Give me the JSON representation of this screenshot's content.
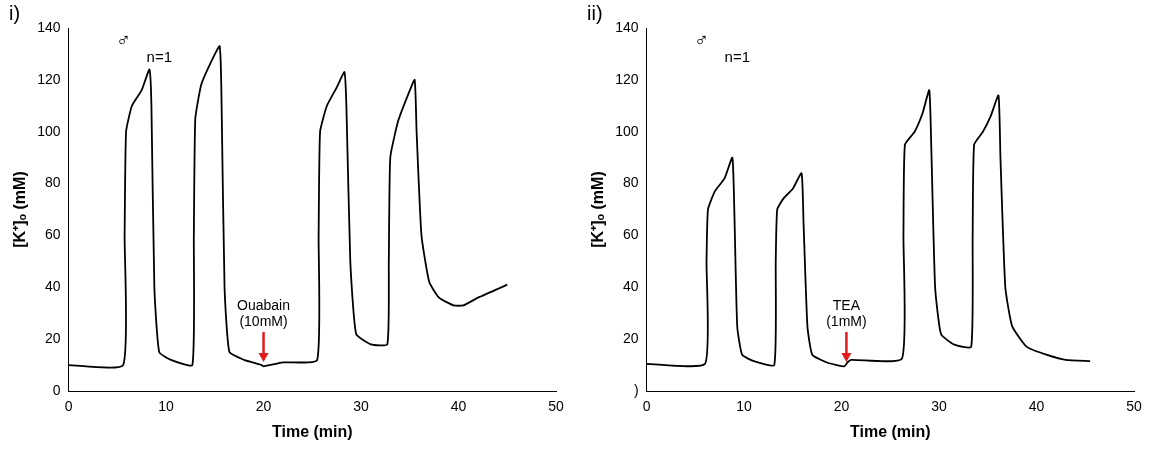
{
  "chart_data": [
    {
      "type": "line",
      "panel_label": "i)",
      "sex": "♂",
      "n_label": "n=1",
      "x_label": "Time (min)",
      "y_label": "[K⁺]ₒ (mM)",
      "xlim": [
        0,
        50
      ],
      "xticks": [
        0,
        10,
        20,
        30,
        40,
        50
      ],
      "ylim": [
        0,
        140
      ],
      "yticks": [
        0,
        20,
        40,
        60,
        80,
        100,
        120,
        140
      ],
      "grid": false,
      "color": "#000000",
      "x": [
        0,
        5.6,
        5.75,
        5.9,
        6.5,
        7.5,
        8.3,
        8.5,
        8.8,
        9.3,
        10.5,
        12.7,
        12.85,
        13.0,
        13.6,
        14.5,
        15.5,
        15.7,
        16.0,
        16.5,
        18,
        19.8,
        20.0,
        22,
        25.5,
        25.65,
        25.8,
        26.5,
        27.5,
        28.3,
        28.5,
        28.9,
        29.5,
        31,
        32.7,
        32.85,
        33.0,
        33.8,
        34.8,
        35.5,
        35.7,
        36.2,
        37,
        38,
        39.5,
        40.5,
        42,
        45
      ],
      "values": [
        10,
        10,
        60,
        100,
        110,
        116,
        124,
        110,
        40,
        15,
        12,
        10,
        60,
        105,
        118,
        126,
        133,
        110,
        40,
        15,
        12,
        10,
        9.5,
        11,
        12,
        60,
        100,
        110,
        117,
        123,
        110,
        50,
        22,
        18,
        18,
        50,
        90,
        104,
        114,
        120,
        100,
        60,
        42,
        36,
        33,
        33,
        36,
        41
      ],
      "annotations": [
        {
          "text": [
            "Ouabain",
            "(10mM)"
          ],
          "x": 20,
          "y": 10,
          "color": "#e31a1c"
        }
      ]
    },
    {
      "type": "line",
      "panel_label": "ii)",
      "sex": "♂",
      "n_label": "n=1",
      "x_label": "Time (min)",
      "y_label": "[K⁺]ₒ (mM)",
      "xlim": [
        0,
        50
      ],
      "xticks": [
        0,
        10,
        20,
        30,
        40,
        50
      ],
      "ylim": [
        0,
        140
      ],
      "yticks": [
        {
          "value": 0,
          "label": ")"
        },
        20,
        40,
        60,
        80,
        100,
        120,
        140
      ],
      "grid": false,
      "color": "#000000",
      "x": [
        0,
        6.0,
        6.15,
        6.3,
        7,
        8,
        8.8,
        9.0,
        9.3,
        9.8,
        11,
        13.1,
        13.25,
        13.4,
        14,
        15,
        15.9,
        16.1,
        16.5,
        17,
        18.5,
        20.3,
        20.6,
        21,
        26.2,
        26.35,
        26.5,
        27.5,
        28.3,
        29,
        29.2,
        29.6,
        30.2,
        31.5,
        33.3,
        33.45,
        33.6,
        34.5,
        35.3,
        36.1,
        36.3,
        36.8,
        37.5,
        39,
        41,
        43,
        45.5
      ],
      "values": [
        10.5,
        10.5,
        50,
        70,
        77,
        82,
        90,
        70,
        25,
        14,
        11.5,
        10,
        50,
        70,
        74,
        78,
        84,
        65,
        25,
        14,
        11,
        9.5,
        11,
        12,
        12.5,
        60,
        95,
        100,
        107,
        116,
        95,
        40,
        22,
        18,
        17,
        60,
        95,
        100,
        106,
        114,
        90,
        40,
        25,
        17,
        14,
        12,
        11.5
      ],
      "annotations": [
        {
          "text": [
            "TEA",
            "(1mM)"
          ],
          "x": 20.5,
          "y": 10,
          "color": "#e31a1c"
        }
      ]
    }
  ]
}
